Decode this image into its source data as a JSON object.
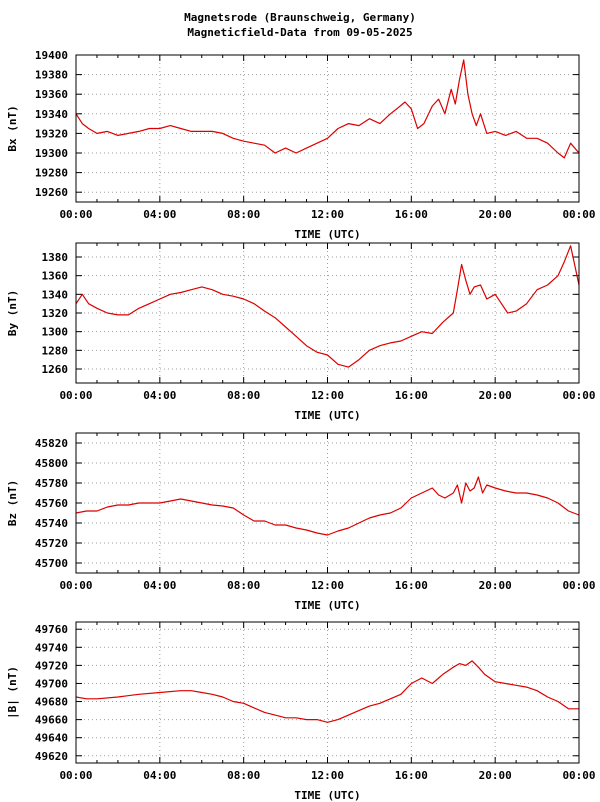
{
  "title": {
    "line1": "Magnetsrode (Braunschweig, Germany)",
    "line2": "Magneticfield-Data from 09-05-2025"
  },
  "colors": {
    "series": "#dd0000",
    "grid": "#a0a0a0",
    "axis": "#000000"
  },
  "chart_data": [
    {
      "type": "line",
      "xlabel": "TIME (UTC)",
      "ylabel": "Bx (nT)",
      "xlim": [
        0,
        24
      ],
      "xticks": [
        "00:00",
        "04:00",
        "08:00",
        "12:00",
        "16:00",
        "20:00",
        "00:00"
      ],
      "ylim": [
        19250,
        19400
      ],
      "yticks": [
        19260,
        19280,
        19300,
        19320,
        19340,
        19360,
        19380,
        19400
      ],
      "grid": true,
      "series": [
        {
          "x": [
            0,
            0.3,
            0.6,
            1,
            1.5,
            2,
            2.5,
            3,
            3.5,
            4,
            4.5,
            5,
            5.5,
            6,
            6.5,
            7,
            7.5,
            8,
            8.5,
            9,
            9.5,
            10,
            10.5,
            11,
            11.5,
            12,
            12.5,
            13,
            13.5,
            14,
            14.5,
            15,
            15.3,
            15.7,
            16,
            16.3,
            16.6,
            17,
            17.3,
            17.6,
            17.9,
            18.1,
            18.3,
            18.5,
            18.7,
            18.9,
            19.1,
            19.3,
            19.6,
            20,
            20.5,
            21,
            21.5,
            22,
            22.5,
            23,
            23.3,
            23.6,
            24
          ],
          "y": [
            19340,
            19330,
            19325,
            19320,
            19322,
            19318,
            19320,
            19322,
            19325,
            19325,
            19328,
            19325,
            19322,
            19322,
            19322,
            19320,
            19315,
            19312,
            19310,
            19308,
            19300,
            19305,
            19300,
            19305,
            19310,
            19315,
            19325,
            19330,
            19328,
            19335,
            19330,
            19340,
            19345,
            19352,
            19345,
            19325,
            19330,
            19348,
            19355,
            19340,
            19365,
            19350,
            19375,
            19395,
            19360,
            19340,
            19328,
            19340,
            19320,
            19322,
            19318,
            19322,
            19315,
            19315,
            19310,
            19300,
            19295,
            19310,
            19300
          ]
        }
      ]
    },
    {
      "type": "line",
      "xlabel": "TIME (UTC)",
      "ylabel": "By (nT)",
      "xlim": [
        0,
        24
      ],
      "xticks": [
        "00:00",
        "04:00",
        "08:00",
        "12:00",
        "16:00",
        "20:00",
        "00:00"
      ],
      "ylim": [
        1245,
        1395
      ],
      "yticks": [
        1260,
        1280,
        1300,
        1320,
        1340,
        1360,
        1380
      ],
      "grid": true,
      "series": [
        {
          "x": [
            0,
            0.3,
            0.6,
            1,
            1.5,
            2,
            2.5,
            3,
            3.5,
            4,
            4.5,
            5,
            5.5,
            6,
            6.5,
            7,
            7.5,
            8,
            8.5,
            9,
            9.5,
            10,
            10.5,
            11,
            11.5,
            12,
            12.5,
            13,
            13.5,
            14,
            14.5,
            15,
            15.5,
            16,
            16.5,
            17,
            17.5,
            18,
            18.2,
            18.4,
            18.6,
            18.8,
            19,
            19.3,
            19.6,
            20,
            20.3,
            20.6,
            21,
            21.5,
            22,
            22.5,
            23,
            23.3,
            23.6,
            24
          ],
          "y": [
            1330,
            1340,
            1330,
            1325,
            1320,
            1318,
            1318,
            1325,
            1330,
            1335,
            1340,
            1342,
            1345,
            1348,
            1345,
            1340,
            1338,
            1335,
            1330,
            1322,
            1315,
            1305,
            1295,
            1285,
            1278,
            1275,
            1265,
            1262,
            1270,
            1280,
            1285,
            1288,
            1290,
            1295,
            1300,
            1298,
            1310,
            1320,
            1345,
            1372,
            1355,
            1340,
            1348,
            1350,
            1335,
            1340,
            1330,
            1320,
            1322,
            1330,
            1345,
            1350,
            1360,
            1375,
            1392,
            1350
          ]
        }
      ]
    },
    {
      "type": "line",
      "xlabel": "TIME (UTC)",
      "ylabel": "Bz (nT)",
      "xlim": [
        0,
        24
      ],
      "xticks": [
        "00:00",
        "04:00",
        "08:00",
        "12:00",
        "16:00",
        "20:00",
        "00:00"
      ],
      "ylim": [
        45690,
        45830
      ],
      "yticks": [
        45700,
        45720,
        45740,
        45760,
        45780,
        45800,
        45820
      ],
      "grid": true,
      "series": [
        {
          "x": [
            0,
            0.5,
            1,
            1.5,
            2,
            2.5,
            3,
            3.5,
            4,
            4.5,
            5,
            5.5,
            6,
            6.5,
            7,
            7.5,
            8,
            8.5,
            9,
            9.5,
            10,
            10.5,
            11,
            11.5,
            12,
            12.5,
            13,
            13.5,
            14,
            14.5,
            15,
            15.5,
            16,
            16.5,
            17,
            17.3,
            17.6,
            18,
            18.2,
            18.4,
            18.6,
            18.8,
            19,
            19.2,
            19.4,
            19.6,
            20,
            20.5,
            21,
            21.5,
            22,
            22.5,
            23,
            23.5,
            24
          ],
          "y": [
            45750,
            45752,
            45752,
            45756,
            45758,
            45758,
            45760,
            45760,
            45760,
            45762,
            45764,
            45762,
            45760,
            45758,
            45757,
            45755,
            45748,
            45742,
            45742,
            45738,
            45738,
            45735,
            45733,
            45730,
            45728,
            45732,
            45735,
            45740,
            45745,
            45748,
            45750,
            45755,
            45765,
            45770,
            45775,
            45768,
            45765,
            45770,
            45778,
            45760,
            45780,
            45772,
            45775,
            45786,
            45770,
            45778,
            45775,
            45772,
            45770,
            45770,
            45768,
            45765,
            45760,
            45752,
            45748
          ]
        }
      ]
    },
    {
      "type": "line",
      "xlabel": "TIME (UTC)",
      "ylabel": "|B| (nT)",
      "xlim": [
        0,
        24
      ],
      "xticks": [
        "00:00",
        "04:00",
        "08:00",
        "12:00",
        "16:00",
        "20:00",
        "00:00"
      ],
      "ylim": [
        49612,
        49768
      ],
      "yticks": [
        49620,
        49640,
        49660,
        49680,
        49700,
        49720,
        49740,
        49760
      ],
      "grid": true,
      "series": [
        {
          "x": [
            0,
            0.5,
            1,
            2,
            3,
            4,
            5,
            5.5,
            6,
            6.5,
            7,
            7.5,
            8,
            8.5,
            9,
            9.5,
            10,
            10.5,
            11,
            11.5,
            12,
            12.5,
            13,
            13.5,
            14,
            14.5,
            15,
            15.5,
            16,
            16.5,
            17,
            17.5,
            18,
            18.3,
            18.6,
            18.9,
            19.2,
            19.5,
            20,
            20.5,
            21,
            21.5,
            22,
            22.5,
            23,
            23.5,
            24
          ],
          "y": [
            49685,
            49683,
            49683,
            49685,
            49688,
            49690,
            49692,
            49692,
            49690,
            49688,
            49685,
            49680,
            49678,
            49673,
            49668,
            49665,
            49662,
            49662,
            49660,
            49660,
            49657,
            49660,
            49665,
            49670,
            49675,
            49678,
            49683,
            49688,
            49700,
            49706,
            49700,
            49710,
            49718,
            49722,
            49720,
            49725,
            49718,
            49710,
            49702,
            49700,
            49698,
            49696,
            49692,
            49685,
            49680,
            49672,
            49672
          ]
        }
      ]
    }
  ]
}
